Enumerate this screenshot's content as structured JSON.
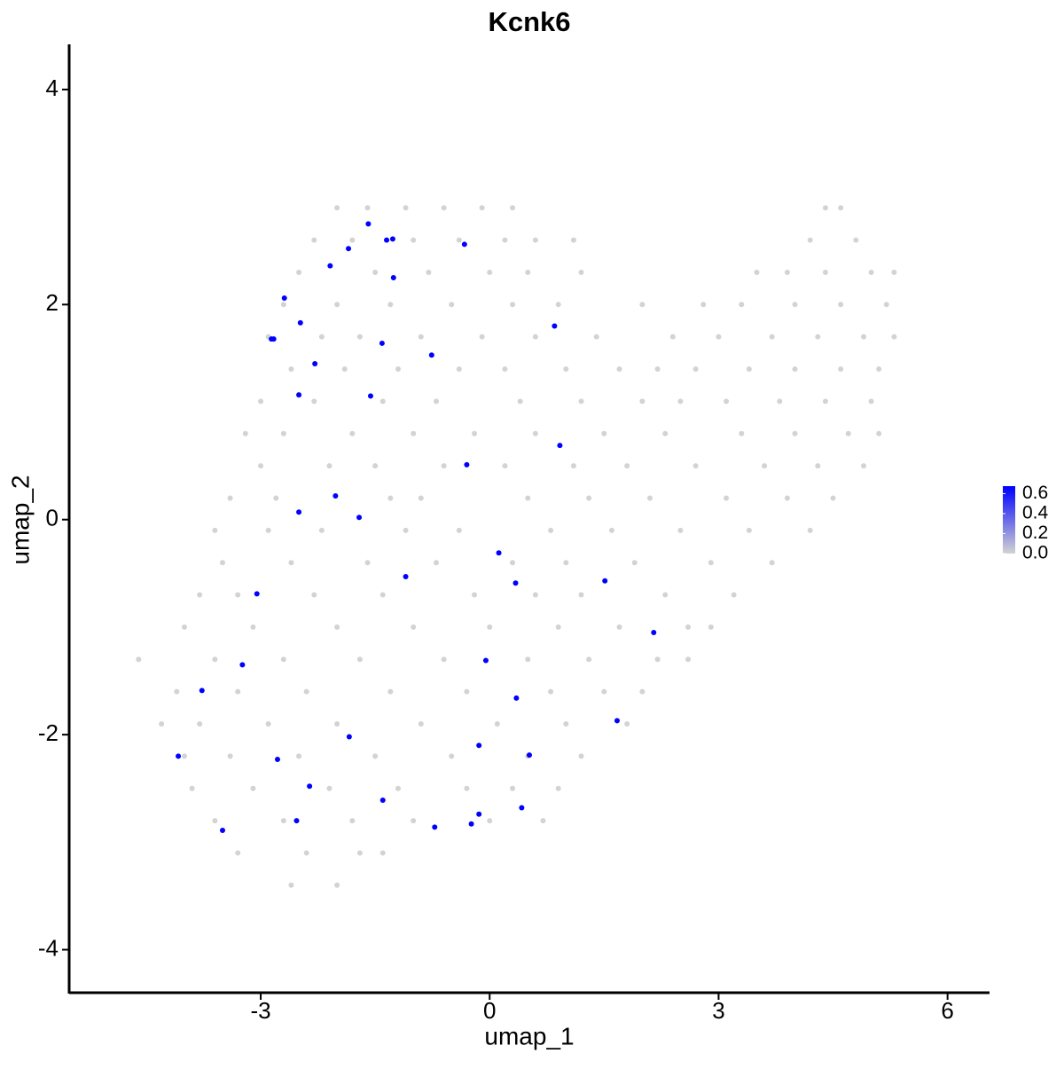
{
  "chart_data": {
    "type": "scatter",
    "title": "Kcnk6",
    "x_label": "umap_1",
    "y_label": "umap_2",
    "xlim": [
      -5.51,
      6.55
    ],
    "ylim": [
      -4.4,
      4.42
    ],
    "xticks": [
      -3,
      0,
      3,
      6
    ],
    "yticks": [
      -4,
      -2,
      0,
      2,
      4
    ],
    "colors": [
      "#d3d3d3",
      "#0000ff"
    ],
    "clim": [
      0,
      0.675
    ],
    "cticks": [
      {
        "value": 0,
        "label": "0.0"
      },
      {
        "value": 0.2,
        "label": "0.2"
      },
      {
        "value": 0.4,
        "label": "0.4"
      },
      {
        "value": 0.6,
        "label": "0.6"
      }
    ],
    "x": [
      -2.0,
      -1.6,
      -1.1,
      -0.6,
      -0.1,
      0.3,
      4.4,
      4.6,
      -2.3,
      -1.8,
      -1.0,
      -0.4,
      0.2,
      0.6,
      1.1,
      4.2,
      4.8,
      -2.5,
      -1.5,
      -0.8,
      0.0,
      0.5,
      1.2,
      3.5,
      3.9,
      4.4,
      5.0,
      5.3,
      -2.7,
      -2.0,
      -1.3,
      -0.5,
      0.3,
      0.9,
      2.0,
      2.8,
      3.3,
      4.0,
      4.6,
      5.2,
      -2.9,
      -2.2,
      -1.7,
      -0.9,
      -0.1,
      0.6,
      1.4,
      2.4,
      3.0,
      3.7,
      4.3,
      4.9,
      5.3,
      -2.6,
      -1.9,
      -1.2,
      -0.4,
      0.2,
      1.0,
      1.7,
      2.2,
      2.7,
      3.4,
      4.0,
      4.6,
      5.1,
      -3.0,
      -2.3,
      -1.4,
      -0.7,
      0.4,
      1.2,
      2.0,
      2.5,
      3.1,
      3.8,
      4.4,
      5.0,
      -3.2,
      -2.7,
      -1.8,
      -1.0,
      -0.2,
      0.6,
      1.5,
      2.3,
      3.3,
      4.0,
      4.7,
      5.1,
      -3.0,
      -2.1,
      -1.5,
      -0.6,
      0.2,
      1.1,
      1.8,
      2.7,
      3.6,
      4.3,
      4.9,
      -3.4,
      -2.8,
      -1.3,
      -0.9,
      0.5,
      1.3,
      2.1,
      3.1,
      3.9,
      4.5,
      -3.6,
      -2.9,
      -2.2,
      -1.1,
      -0.4,
      0.8,
      1.6,
      2.5,
      3.4,
      4.2,
      -3.5,
      -2.6,
      -1.6,
      -0.7,
      0.3,
      1.0,
      1.9,
      2.9,
      3.7,
      -3.8,
      -3.3,
      -2.3,
      -1.4,
      -0.2,
      0.6,
      1.2,
      2.3,
      3.2,
      -4.0,
      -3.1,
      -2.0,
      -1.0,
      0.0,
      0.9,
      1.7,
      2.6,
      2.9,
      -4.6,
      -3.6,
      -2.7,
      -1.7,
      -0.6,
      0.5,
      1.3,
      2.2,
      2.6,
      -4.1,
      -3.3,
      -2.4,
      -1.3,
      -0.3,
      0.8,
      1.5,
      2.0,
      -4.3,
      -3.8,
      -2.9,
      -2.0,
      -0.9,
      0.1,
      1.0,
      1.8,
      -4.0,
      -3.4,
      -2.5,
      -1.5,
      -0.5,
      0.5,
      1.2,
      -3.9,
      -3.1,
      -2.1,
      -1.2,
      -0.3,
      0.3,
      0.9,
      -3.6,
      -2.7,
      -1.8,
      -1.0,
      0.0,
      0.7,
      -3.3,
      -2.4,
      -1.7,
      -1.4,
      -2.6,
      -2.0,
      -1.59,
      -1.85,
      -1.35,
      -1.27,
      -0.33,
      -2.09,
      -1.26,
      -2.69,
      -2.86,
      -2.83,
      -2.48,
      -1.41,
      -0.76,
      0.85,
      -2.29,
      -2.5,
      -1.56,
      0.92,
      -0.3,
      -2.02,
      -2.5,
      -1.71,
      0.12,
      -1.1,
      0.34,
      1.51,
      -3.05,
      2.15,
      -3.24,
      -0.05,
      -3.77,
      0.35,
      1.67,
      -1.84,
      -0.14,
      -4.08,
      -2.78,
      0.52,
      -2.36,
      -1.4,
      0.42,
      -0.14,
      -2.53,
      -0.24,
      -0.72,
      -3.5
    ],
    "values": [
      2.9,
      2.9,
      2.9,
      2.9,
      2.9,
      2.9,
      2.9,
      2.9,
      2.6,
      2.6,
      2.6,
      2.6,
      2.6,
      2.6,
      2.6,
      2.6,
      2.6,
      2.3,
      2.3,
      2.3,
      2.3,
      2.3,
      2.3,
      2.3,
      2.3,
      2.3,
      2.3,
      2.3,
      2.0,
      2.0,
      2.0,
      2.0,
      2.0,
      2.0,
      2.0,
      2.0,
      2.0,
      2.0,
      2.0,
      2.0,
      1.7,
      1.7,
      1.7,
      1.7,
      1.7,
      1.7,
      1.7,
      1.7,
      1.7,
      1.7,
      1.7,
      1.7,
      1.7,
      1.4,
      1.4,
      1.4,
      1.4,
      1.4,
      1.4,
      1.4,
      1.4,
      1.4,
      1.4,
      1.4,
      1.4,
      1.4,
      1.1,
      1.1,
      1.1,
      1.1,
      1.1,
      1.1,
      1.1,
      1.1,
      1.1,
      1.1,
      1.1,
      1.1,
      0.8,
      0.8,
      0.8,
      0.8,
      0.8,
      0.8,
      0.8,
      0.8,
      0.8,
      0.8,
      0.8,
      0.8,
      0.5,
      0.5,
      0.5,
      0.5,
      0.5,
      0.5,
      0.5,
      0.5,
      0.5,
      0.5,
      0.5,
      0.2,
      0.2,
      0.2,
      0.2,
      0.2,
      0.2,
      0.2,
      0.2,
      0.2,
      0.2,
      -0.1,
      -0.1,
      -0.1,
      -0.1,
      -0.1,
      -0.1,
      -0.1,
      -0.1,
      -0.1,
      -0.1,
      -0.4,
      -0.4,
      -0.4,
      -0.4,
      -0.4,
      -0.4,
      -0.4,
      -0.4,
      -0.4,
      -0.7,
      -0.7,
      -0.7,
      -0.7,
      -0.7,
      -0.7,
      -0.7,
      -0.7,
      -0.7,
      -1.0,
      -1.0,
      -1.0,
      -1.0,
      -1.0,
      -1.0,
      -1.0,
      -1.0,
      -1.0,
      -1.3,
      -1.3,
      -1.3,
      -1.3,
      -1.3,
      -1.3,
      -1.3,
      -1.3,
      -1.3,
      -1.6,
      -1.6,
      -1.6,
      -1.6,
      -1.6,
      -1.6,
      -1.6,
      -1.6,
      -1.9,
      -1.9,
      -1.9,
      -1.9,
      -1.9,
      -1.9,
      -1.9,
      -1.9,
      -2.2,
      -2.2,
      -2.2,
      -2.2,
      -2.2,
      -2.2,
      -2.2,
      -2.5,
      -2.5,
      -2.5,
      -2.5,
      -2.5,
      -2.5,
      -2.5,
      -2.8,
      -2.8,
      -2.8,
      -2.8,
      -2.8,
      -2.8,
      -3.1,
      -3.1,
      -3.1,
      -3.1,
      -3.4,
      -3.4,
      2.75,
      2.52,
      2.6,
      2.61,
      2.56,
      2.36,
      2.25,
      2.06,
      1.68,
      1.68,
      1.83,
      1.64,
      1.53,
      1.8,
      1.45,
      1.16,
      1.15,
      0.69,
      0.51,
      0.22,
      0.07,
      0.02,
      -0.31,
      -0.53,
      -0.59,
      -0.57,
      -0.69,
      -1.05,
      -1.35,
      -1.31,
      -1.59,
      -1.66,
      -1.87,
      -2.02,
      -2.1,
      -2.2,
      -2.23,
      -2.19,
      -2.48,
      -2.61,
      -2.68,
      -2.74,
      -2.8,
      -2.83,
      -2.86,
      -2.89
    ],
    "expression": [
      0,
      0,
      0,
      0,
      0,
      0,
      0,
      0,
      0,
      0,
      0,
      0,
      0,
      0,
      0,
      0,
      0,
      0,
      0,
      0,
      0,
      0,
      0,
      0,
      0,
      0,
      0,
      0,
      0,
      0,
      0,
      0,
      0,
      0,
      0,
      0,
      0,
      0,
      0,
      0,
      0,
      0,
      0,
      0,
      0,
      0,
      0,
      0,
      0,
      0,
      0,
      0,
      0,
      0,
      0,
      0,
      0,
      0,
      0,
      0,
      0,
      0,
      0,
      0,
      0,
      0,
      0,
      0,
      0,
      0,
      0,
      0,
      0,
      0,
      0,
      0,
      0,
      0,
      0,
      0,
      0,
      0,
      0,
      0,
      0,
      0,
      0,
      0,
      0,
      0,
      0,
      0,
      0,
      0,
      0,
      0,
      0,
      0,
      0,
      0,
      0,
      0,
      0,
      0,
      0,
      0,
      0,
      0,
      0,
      0,
      0,
      0,
      0,
      0,
      0,
      0,
      0,
      0,
      0,
      0,
      0,
      0,
      0,
      0,
      0,
      0,
      0,
      0,
      0,
      0,
      0,
      0,
      0,
      0,
      0,
      0,
      0,
      0,
      0,
      0,
      0,
      0,
      0,
      0,
      0,
      0,
      0,
      0,
      0,
      0,
      0,
      0,
      0,
      0,
      0,
      0,
      0,
      0,
      0,
      0,
      0,
      0,
      0,
      0,
      0,
      0,
      0,
      0,
      0,
      0,
      0,
      0,
      0,
      0,
      0,
      0,
      0,
      0,
      0,
      0,
      0,
      0,
      0,
      0,
      0,
      0,
      0,
      0,
      0,
      0,
      0,
      0,
      0,
      0,
      0,
      0,
      0,
      0,
      0,
      0.675,
      0.675,
      0.675,
      0.675,
      0.675,
      0.675,
      0.675,
      0.675,
      0.675,
      0.675,
      0.675,
      0.675,
      0.675,
      0.675,
      0.675,
      0.675,
      0.675,
      0.675,
      0.675,
      0.675,
      0.675,
      0.675,
      0.675,
      0.675,
      0.675,
      0.675,
      0.675,
      0.675,
      0.675,
      0.675,
      0.675,
      0.675,
      0.675,
      0.675,
      0.675,
      0.675,
      0.675,
      0.675,
      0.675,
      0.675,
      0.675,
      0.675,
      0.675,
      0.675,
      0.675,
      0.675
    ]
  }
}
